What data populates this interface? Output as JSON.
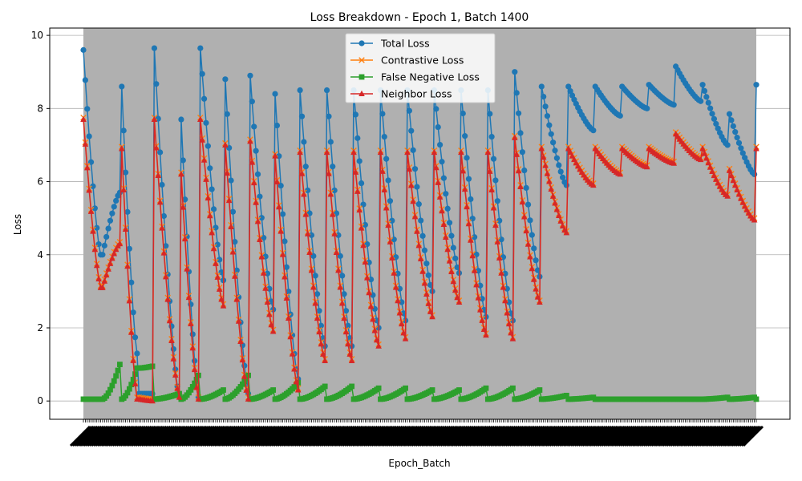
{
  "chart_data": {
    "type": "line",
    "title": "Loss Breakdown - Epoch 1, Batch 1400",
    "xlabel": "Epoch_Batch",
    "ylabel": "Loss",
    "ylim": [
      -0.5,
      10.2
    ],
    "yticks": [
      0,
      2,
      4,
      6,
      8,
      10
    ],
    "grid": "y-only",
    "legend_position": "top-center",
    "background_fill": "#b0b0b0",
    "series": [
      {
        "name": "Total Loss",
        "color": "#1f77b4",
        "marker": "circle"
      },
      {
        "name": "Contrastive Loss",
        "color": "#ff7f0e",
        "marker": "x"
      },
      {
        "name": "False Negative Loss",
        "color": "#2ca02c",
        "marker": "square"
      },
      {
        "name": "Neighbor Loss",
        "color": "#d62728",
        "marker": "triangle"
      }
    ],
    "segments": [
      {
        "len": 10,
        "total": [
          9.6,
          4.0
        ],
        "neighbor": [
          7.7,
          3.1
        ],
        "fn": [
          0.05,
          0.05
        ]
      },
      {
        "len": 10,
        "total": [
          4.0,
          5.7
        ],
        "neighbor": [
          3.1,
          4.3
        ],
        "fn": [
          0.05,
          1.0
        ]
      },
      {
        "len": 9,
        "total": [
          8.6,
          1.3
        ],
        "neighbor": [
          6.9,
          0.05
        ],
        "fn": [
          0.05,
          0.9
        ]
      },
      {
        "len": 8,
        "total": [
          0.2,
          0.2
        ],
        "neighbor": [
          0.05,
          0.0
        ],
        "fn": [
          0.9,
          0.95
        ]
      },
      {
        "len": 14,
        "total": [
          9.65,
          0.1
        ],
        "neighbor": [
          7.7,
          0.1
        ],
        "fn": [
          0.05,
          0.2
        ]
      },
      {
        "len": 10,
        "total": [
          7.7,
          0.1
        ],
        "neighbor": [
          6.2,
          0.05
        ],
        "fn": [
          0.05,
          0.7
        ]
      },
      {
        "len": 13,
        "total": [
          9.65,
          3.3
        ],
        "neighbor": [
          7.7,
          2.6
        ],
        "fn": [
          0.05,
          0.3
        ]
      },
      {
        "len": 13,
        "total": [
          8.8,
          0.2
        ],
        "neighbor": [
          7.0,
          0.05
        ],
        "fn": [
          0.05,
          0.7
        ]
      },
      {
        "len": 13,
        "total": [
          8.9,
          2.5
        ],
        "neighbor": [
          7.1,
          1.9
        ],
        "fn": [
          0.05,
          0.3
        ]
      },
      {
        "len": 13,
        "total": [
          8.4,
          0.6
        ],
        "neighbor": [
          6.7,
          0.3
        ],
        "fn": [
          0.05,
          0.5
        ]
      },
      {
        "len": 14,
        "total": [
          8.5,
          1.5
        ],
        "neighbor": [
          6.8,
          1.1
        ],
        "fn": [
          0.05,
          0.4
        ]
      },
      {
        "len": 14,
        "total": [
          8.5,
          1.5
        ],
        "neighbor": [
          6.8,
          1.1
        ],
        "fn": [
          0.05,
          0.4
        ]
      },
      {
        "len": 14,
        "total": [
          8.5,
          2.0
        ],
        "neighbor": [
          6.8,
          1.5
        ],
        "fn": [
          0.05,
          0.35
        ]
      },
      {
        "len": 14,
        "total": [
          8.5,
          2.2
        ],
        "neighbor": [
          6.8,
          1.7
        ],
        "fn": [
          0.05,
          0.35
        ]
      },
      {
        "len": 14,
        "total": [
          8.5,
          3.0
        ],
        "neighbor": [
          6.8,
          2.3
        ],
        "fn": [
          0.05,
          0.3
        ]
      },
      {
        "len": 14,
        "total": [
          8.5,
          3.5
        ],
        "neighbor": [
          6.8,
          2.7
        ],
        "fn": [
          0.05,
          0.3
        ]
      },
      {
        "len": 14,
        "total": [
          8.5,
          2.3
        ],
        "neighbor": [
          6.8,
          1.8
        ],
        "fn": [
          0.05,
          0.35
        ]
      },
      {
        "len": 14,
        "total": [
          8.5,
          2.2
        ],
        "neighbor": [
          6.8,
          1.7
        ],
        "fn": [
          0.05,
          0.35
        ]
      },
      {
        "len": 14,
        "total": [
          9.0,
          3.4
        ],
        "neighbor": [
          7.2,
          2.7
        ],
        "fn": [
          0.05,
          0.3
        ]
      },
      {
        "len": 14,
        "total": [
          8.6,
          5.9
        ],
        "neighbor": [
          6.9,
          4.6
        ],
        "fn": [
          0.05,
          0.15
        ]
      },
      {
        "len": 14,
        "total": [
          8.6,
          7.4
        ],
        "neighbor": [
          6.9,
          5.9
        ],
        "fn": [
          0.05,
          0.1
        ]
      },
      {
        "len": 14,
        "total": [
          8.6,
          7.8
        ],
        "neighbor": [
          6.9,
          6.2
        ],
        "fn": [
          0.05,
          0.05
        ]
      },
      {
        "len": 14,
        "total": [
          8.6,
          8.0
        ],
        "neighbor": [
          6.9,
          6.4
        ],
        "fn": [
          0.05,
          0.05
        ]
      },
      {
        "len": 14,
        "total": [
          8.65,
          8.1
        ],
        "neighbor": [
          6.9,
          6.5
        ],
        "fn": [
          0.05,
          0.05
        ]
      },
      {
        "len": 14,
        "total": [
          9.15,
          8.2
        ],
        "neighbor": [
          7.3,
          6.6
        ],
        "fn": [
          0.05,
          0.05
        ]
      },
      {
        "len": 14,
        "total": [
          8.65,
          7.0
        ],
        "neighbor": [
          6.9,
          5.6
        ],
        "fn": [
          0.05,
          0.1
        ]
      },
      {
        "len": 14,
        "total": [
          7.85,
          6.2
        ],
        "neighbor": [
          6.3,
          4.95
        ],
        "fn": [
          0.05,
          0.1
        ]
      },
      {
        "len": 1,
        "total": [
          8.65,
          8.65
        ],
        "neighbor": [
          6.9,
          6.9
        ],
        "fn": [
          0.05,
          0.05
        ]
      }
    ]
  }
}
